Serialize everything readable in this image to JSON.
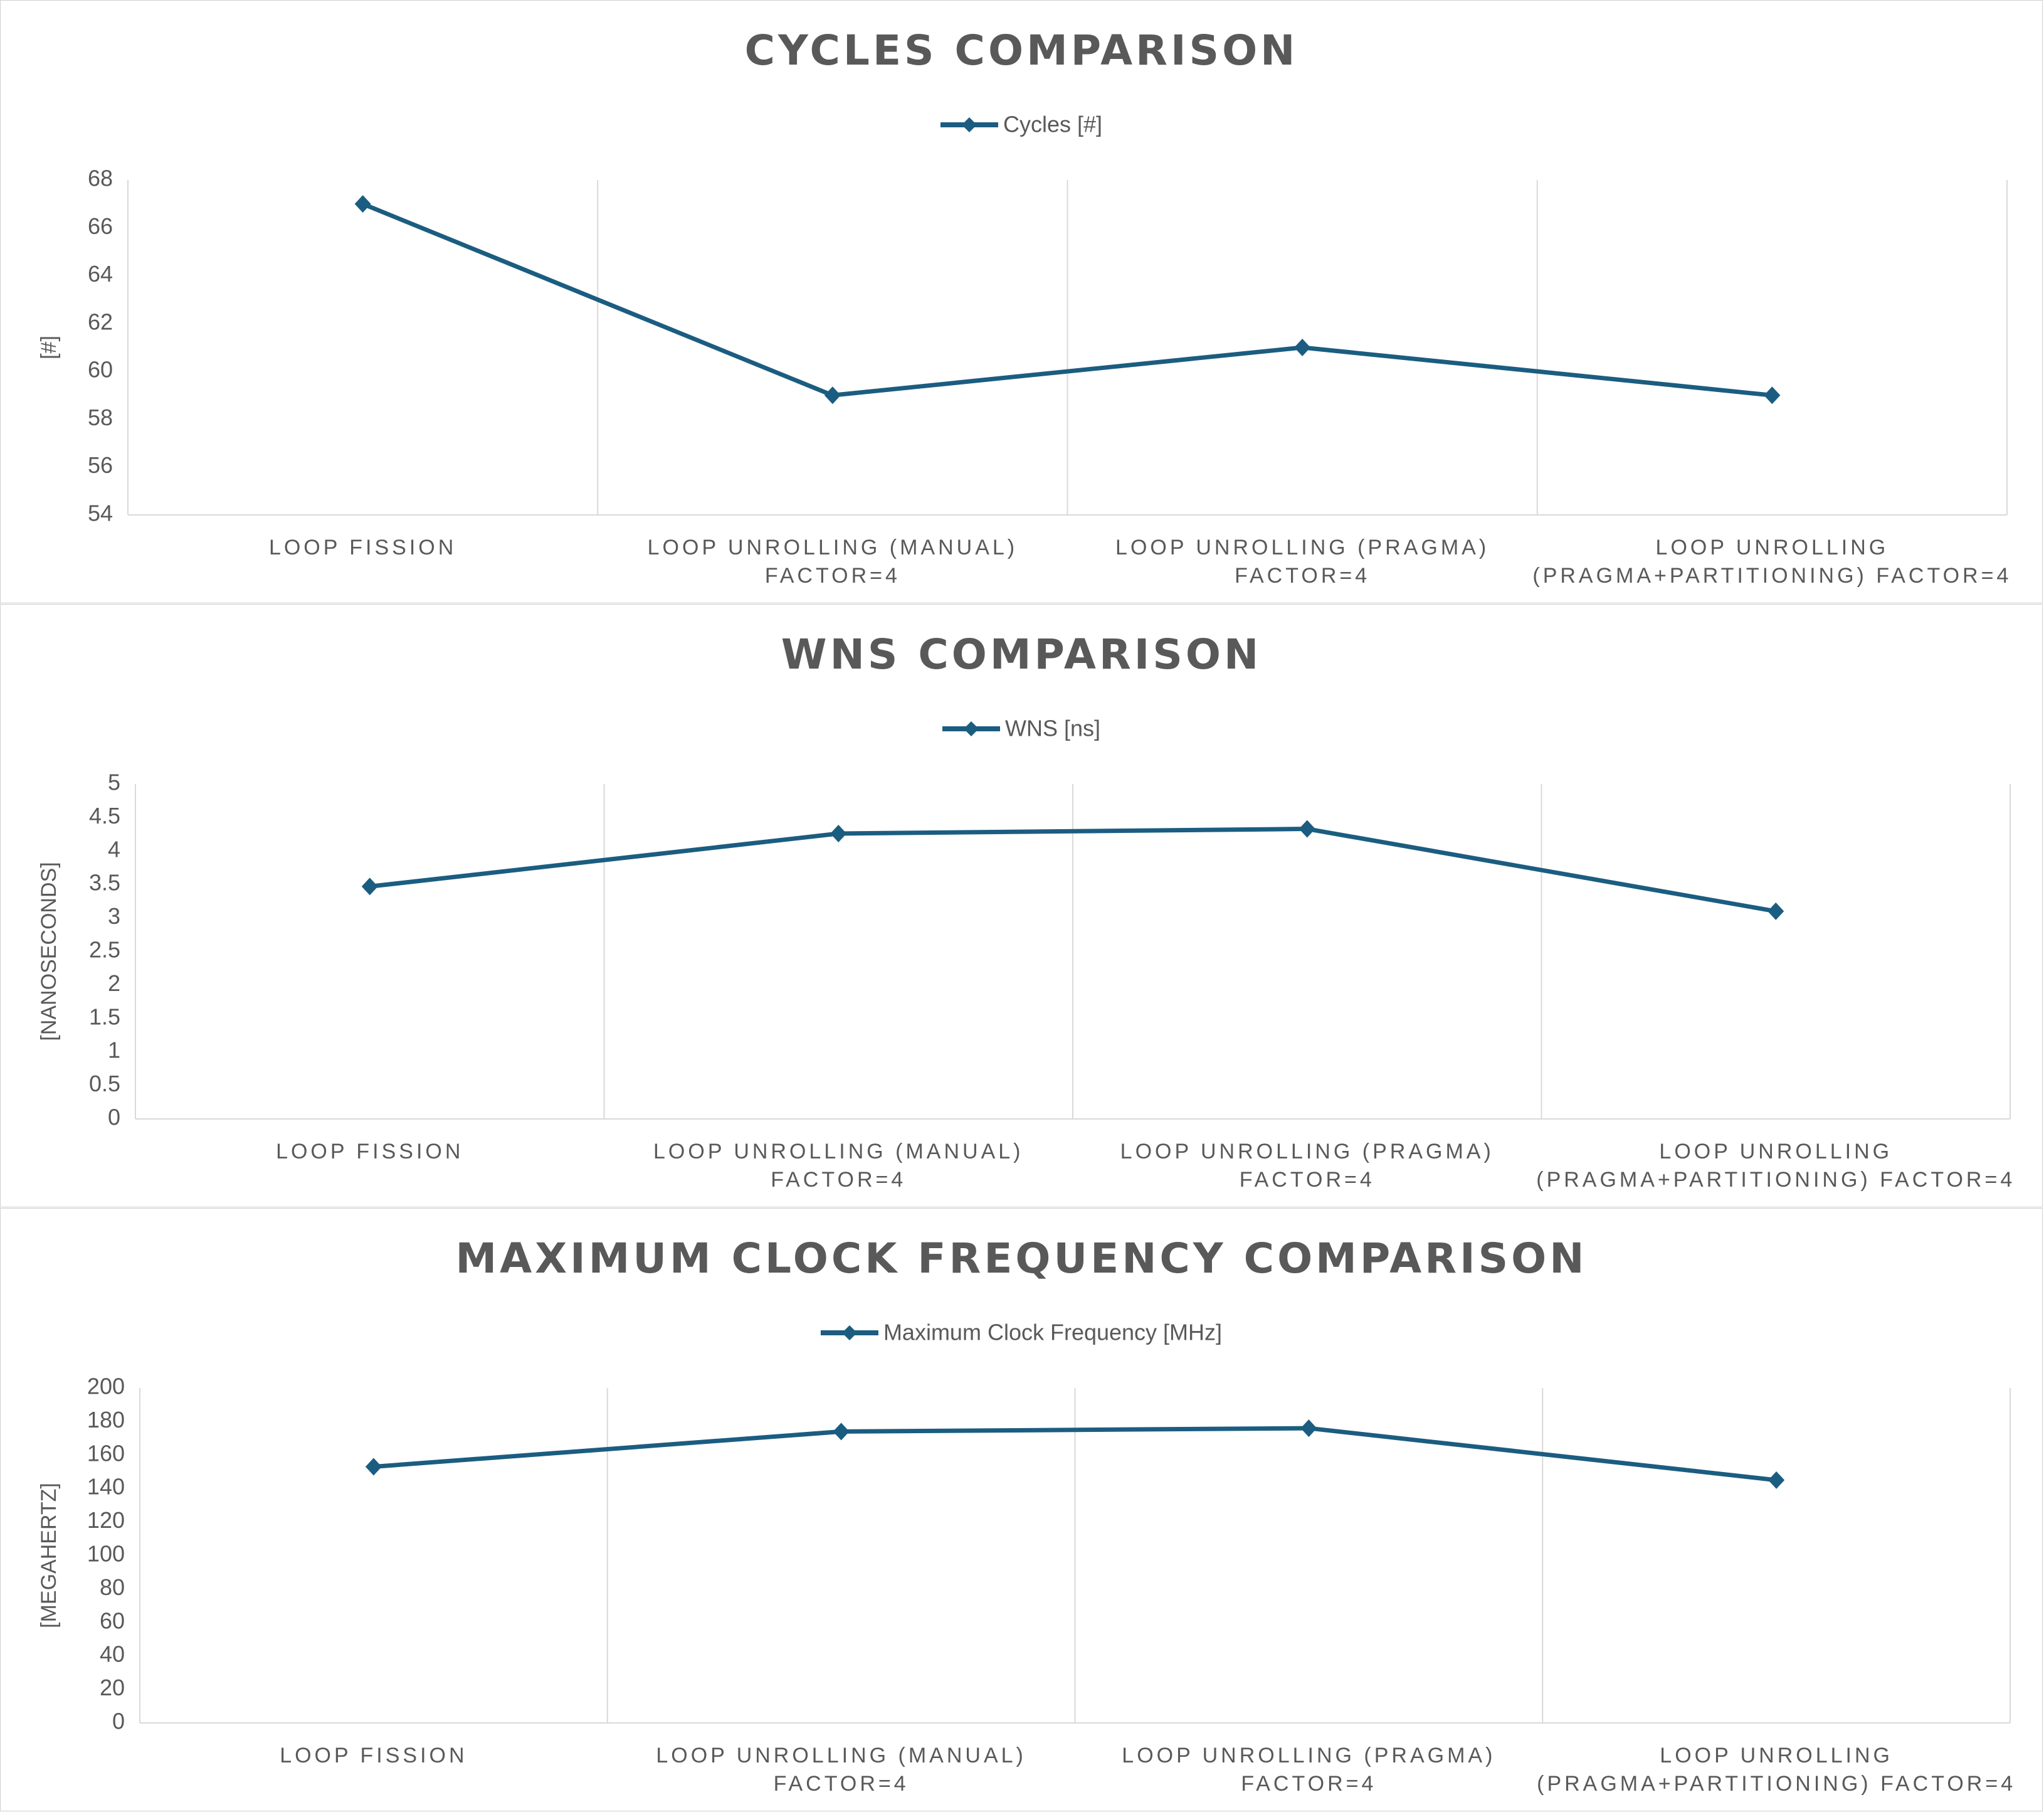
{
  "colors": {
    "series": "#1b5d80",
    "text": "#595959",
    "grid": "#d9d9d9"
  },
  "chart_data": [
    {
      "type": "line",
      "title": "CYCLES COMPARISON",
      "ylabel": "[#]",
      "xlabel": "",
      "categories": [
        [
          "LOOP FISSION"
        ],
        [
          "LOOP UNROLLING (MANUAL)",
          "FACTOR=4"
        ],
        [
          "LOOP UNROLLING (PRAGMA)",
          "FACTOR=4"
        ],
        [
          "LOOP UNROLLING",
          "(PRAGMA+PARTITIONING) FACTOR=4"
        ]
      ],
      "series": [
        {
          "name": "Cycles [#]",
          "values": [
            67,
            59,
            61,
            59
          ]
        }
      ],
      "ylim": [
        54,
        68
      ],
      "yticks": [
        "54",
        "56",
        "58",
        "60",
        "62",
        "64",
        "66",
        "68"
      ],
      "legend": "top-center",
      "grid": "vertical category separators"
    },
    {
      "type": "line",
      "title": "WNS COMPARISON",
      "ylabel": "[NANOSECONDS]",
      "xlabel": "",
      "categories": [
        [
          "LOOP FISSION"
        ],
        [
          "LOOP UNROLLING (MANUAL)",
          "FACTOR=4"
        ],
        [
          "LOOP UNROLLING (PRAGMA)",
          "FACTOR=4"
        ],
        [
          "LOOP UNROLLING",
          "(PRAGMA+PARTITIONING) FACTOR=4"
        ]
      ],
      "series": [
        {
          "name": "WNS [ns]",
          "values": [
            3.47,
            4.26,
            4.33,
            3.1
          ]
        }
      ],
      "ylim": [
        0,
        5
      ],
      "yticks": [
        "0",
        "0.5",
        "1",
        "1.5",
        "2",
        "2.5",
        "3",
        "3.5",
        "4",
        "4.5",
        "5"
      ],
      "legend": "top-center",
      "grid": "vertical category separators"
    },
    {
      "type": "line",
      "title": "MAXIMUM CLOCK FREQUENCY COMPARISON",
      "ylabel": "[MEGAHERTZ]",
      "xlabel": "",
      "categories": [
        [
          "LOOP FISSION"
        ],
        [
          "LOOP UNROLLING (MANUAL)",
          "FACTOR=4"
        ],
        [
          "LOOP UNROLLING (PRAGMA)",
          "FACTOR=4"
        ],
        [
          "LOOP UNROLLING",
          "(PRAGMA+PARTITIONING) FACTOR=4"
        ]
      ],
      "series": [
        {
          "name": "Maximum Clock Frequency [MHz]",
          "values": [
            153,
            174,
            176,
            145
          ]
        }
      ],
      "ylim": [
        0,
        200
      ],
      "yticks": [
        "0",
        "20",
        "40",
        "60",
        "80",
        "100",
        "120",
        "140",
        "160",
        "180",
        "200"
      ],
      "legend": "top-center",
      "grid": "vertical category separators"
    }
  ]
}
